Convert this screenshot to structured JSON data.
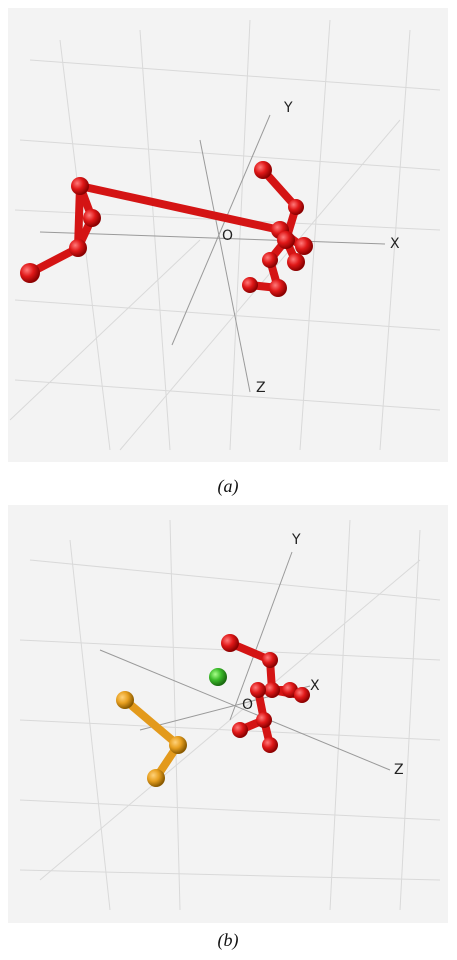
{
  "panels": [
    {
      "labels": [
        "Y",
        "O",
        "X",
        "Z"
      ],
      "caption": "(a)"
    },
    {
      "labels": [
        "Y",
        "O",
        "X",
        "Z"
      ],
      "caption": "(b)"
    }
  ]
}
